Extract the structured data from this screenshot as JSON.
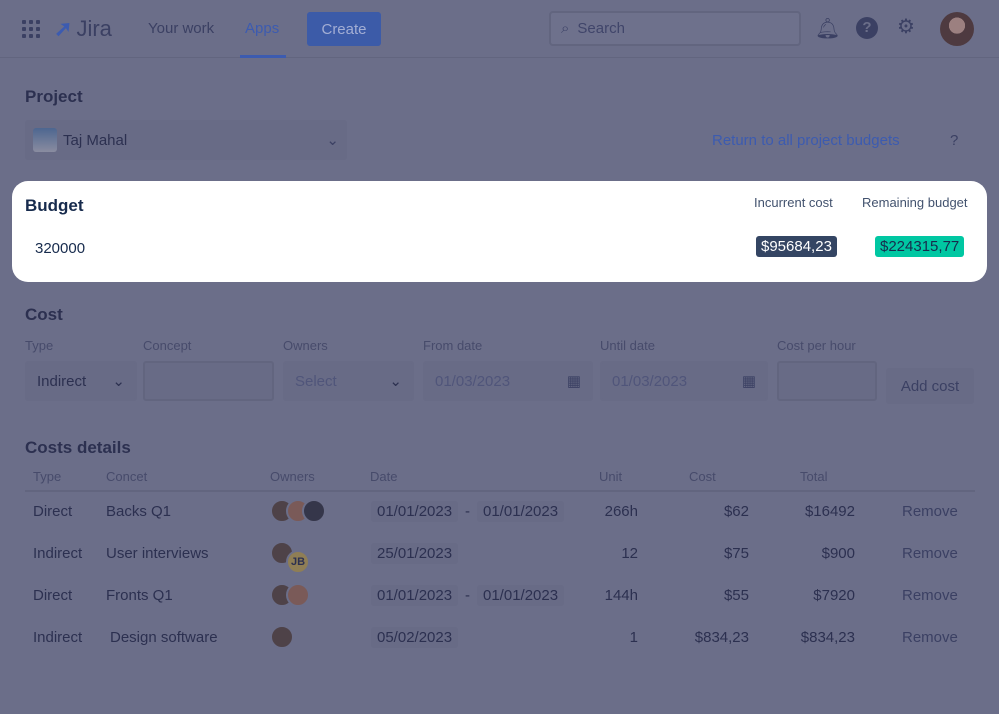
{
  "header": {
    "logo": "Jira",
    "nav": [
      "Your work",
      "Apps"
    ],
    "active": "Apps",
    "create": "Create",
    "search_placeholder": "Search"
  },
  "project": {
    "title": "Project",
    "selected": "Taj Mahal",
    "return_link": "Return to all project budgets",
    "help": "?"
  },
  "budget": {
    "title": "Budget",
    "value": "320000",
    "incurred_label": "Incurrent cost",
    "incurred_value": "$95684,23",
    "remaining_label": "Remaining budget",
    "remaining_value": "$224315,77",
    "colors": {
      "incurred": "#344563",
      "remaining": "#00c7a2"
    }
  },
  "cost": {
    "title": "Cost",
    "labels": {
      "type": "Type",
      "concept": "Concept",
      "owners": "Owners",
      "from": "From date",
      "until": "Until date",
      "cph": "Cost per hour"
    },
    "type_value": "Indirect",
    "owners_placeholder": "Select",
    "from_value": "01/03/2023",
    "until_value": "01/03/2023",
    "add": "Add cost"
  },
  "details": {
    "title": "Costs details",
    "columns": [
      "Type",
      "Concet",
      "Owners",
      "Date",
      "Unit",
      "Cost",
      "Total"
    ],
    "rows": [
      {
        "type": "Direct",
        "concept": "Backs Q1",
        "owners": 3,
        "from": "01/01/2023",
        "sep": "-",
        "to": "01/01/2023",
        "unit": "266h",
        "cost": "$62",
        "total": "$16492",
        "action": "Remove"
      },
      {
        "type": "Indirect",
        "concept": "User interviews",
        "owners": 2,
        "initials": "JB",
        "from": "25/01/2023",
        "unit": "12",
        "cost": "$75",
        "total": "$900",
        "action": "Remove"
      },
      {
        "type": "Direct",
        "concept": "Fronts Q1",
        "owners": 2,
        "from": "01/01/2023",
        "sep": "-",
        "to": "01/01/2023",
        "unit": "144h",
        "cost": "$55",
        "total": "$7920",
        "action": "Remove"
      },
      {
        "type": "Indirect",
        "concept": "Design software",
        "owners": 1,
        "from": "05/02/2023",
        "unit": "1",
        "cost": "$834,23",
        "total": "$834,23",
        "action": "Remove"
      }
    ]
  }
}
